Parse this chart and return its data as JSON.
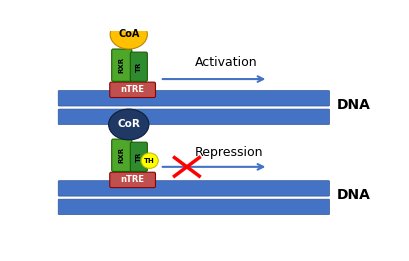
{
  "background_color": "#ffffff",
  "dna_color": "#4472c4",
  "dna_stroke": "#2f5496",
  "ntre_color": "#c0504d",
  "rxr_color": "#4ea72a",
  "tr_color": "#2e8b2e",
  "coa_color": "#ffc000",
  "cor_color": "#1f3864",
  "th_color": "#ffff00",
  "th_stroke": "#c0c000",
  "arrow_color": "#4472c4",
  "cross_color": "#ff0000",
  "text_color": "#000000",
  "dna_label": "DNA",
  "ntre_label": "nTRE",
  "rxr_label": "RXR",
  "tr_label": "TR",
  "coa_label": "CoA",
  "cor_label": "CoR",
  "th_label": "TH",
  "activation_label": "Activation",
  "repression_label": "Repression"
}
